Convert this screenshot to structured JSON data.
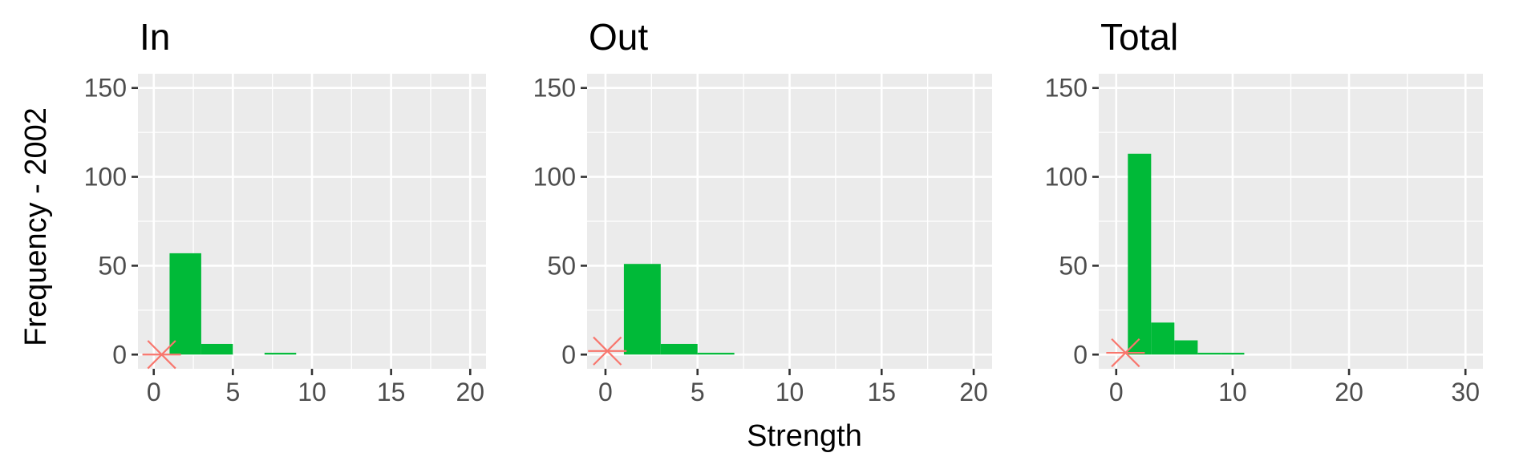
{
  "chart_data": {
    "type": "bar",
    "kind": "histogram-facets",
    "xlabel": "Strength",
    "ylabel": "Frequency - 2002",
    "colors": {
      "panel_background": "#ebebeb",
      "grid": "#ffffff",
      "bar": "#00ba38",
      "marker": "#f8766d",
      "tick_label": "#4d4d4d"
    },
    "panels": [
      {
        "title": "In",
        "xlim": [
          -1,
          21
        ],
        "xticks": [
          0,
          5,
          10,
          15,
          20
        ],
        "ylim": [
          -8,
          158
        ],
        "yticks": [
          0,
          50,
          100,
          150
        ],
        "bins": [
          {
            "x0": 1,
            "x1": 3,
            "count": 57
          },
          {
            "x0": 3,
            "x1": 5,
            "count": 6
          },
          {
            "x0": 7,
            "x1": 9,
            "count": 1
          }
        ],
        "marker": {
          "x": 0.5,
          "y": 0
        }
      },
      {
        "title": "Out",
        "xlim": [
          -1,
          21
        ],
        "xticks": [
          0,
          5,
          10,
          15,
          20
        ],
        "ylim": [
          -8,
          158
        ],
        "yticks": [
          0,
          50,
          100,
          150
        ],
        "bins": [
          {
            "x0": 1,
            "x1": 3,
            "count": 51
          },
          {
            "x0": 3,
            "x1": 5,
            "count": 6
          },
          {
            "x0": 5,
            "x1": 7,
            "count": 1
          }
        ],
        "marker": {
          "x": 0.1,
          "y": 2
        }
      },
      {
        "title": "Total",
        "xlim": [
          -1.5,
          31.5
        ],
        "xticks": [
          0,
          10,
          20,
          30
        ],
        "ylim": [
          -8,
          158
        ],
        "yticks": [
          0,
          50,
          100,
          150
        ],
        "bins": [
          {
            "x0": 1,
            "x1": 3,
            "count": 113
          },
          {
            "x0": 3,
            "x1": 5,
            "count": 18
          },
          {
            "x0": 5,
            "x1": 7,
            "count": 8
          },
          {
            "x0": 7,
            "x1": 9,
            "count": 1
          },
          {
            "x0": 9,
            "x1": 11,
            "count": 1
          }
        ],
        "marker": {
          "x": 0.8,
          "y": 1
        }
      }
    ]
  }
}
